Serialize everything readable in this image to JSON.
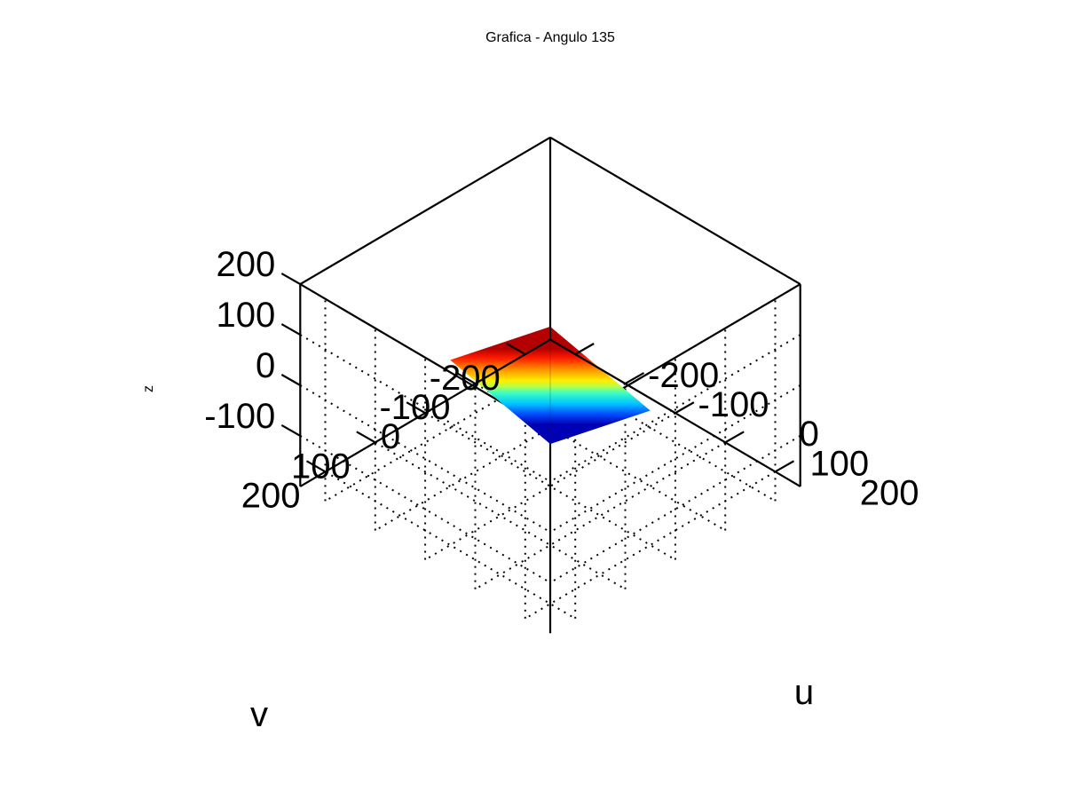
{
  "chart_data": {
    "type": "surface3d",
    "title": "Grafica - Angulo  135",
    "xlabel": "u",
    "ylabel": "v",
    "zlabel": "z",
    "xlim": [
      -250,
      250
    ],
    "ylim": [
      -250,
      250
    ],
    "zlim": [
      -200,
      200
    ],
    "xticks": [
      -200,
      -100,
      0,
      100,
      200
    ],
    "yticks": [
      -200,
      -100,
      0,
      100,
      200
    ],
    "zticks": [
      -100,
      0,
      100,
      200
    ],
    "grid": true,
    "colormap": "jet",
    "surface": {
      "u_range": [
        -100,
        100
      ],
      "v_range": [
        -100,
        100
      ],
      "z_range": [
        -50,
        50
      ],
      "description_of_shape": "plane z = (v - u) / 4"
    }
  }
}
